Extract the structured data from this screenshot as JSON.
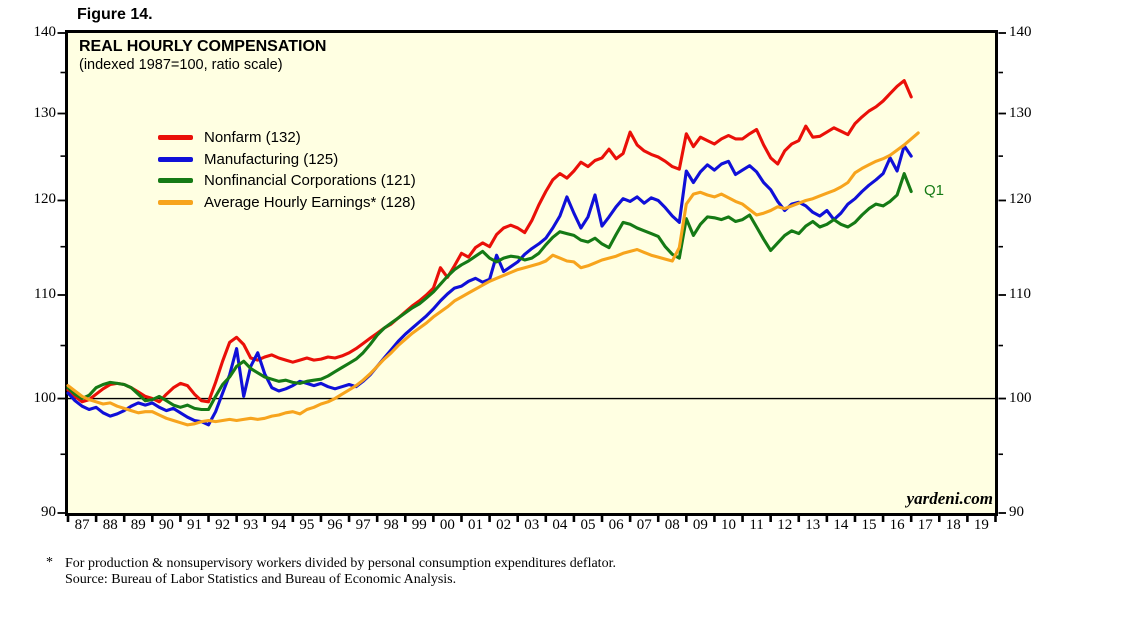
{
  "figure_label": "Figure 14.",
  "chart_data": {
    "type": "line",
    "title": "REAL HOURLY COMPENSATION",
    "subtitle": "(indexed 1987=100, ratio scale)",
    "legend_position": "upper-left",
    "grid": false,
    "y_axis": {
      "min": 90,
      "max": 140,
      "scale": "ratio-log",
      "sides": "both",
      "major_ticks": [
        140,
        130,
        120,
        110,
        100,
        90
      ],
      "minor_ticks": [
        135,
        125,
        115,
        105,
        95
      ],
      "baseline": 100
    },
    "x_axis": {
      "start_year": 1987,
      "end_year": 2020,
      "labels": [
        "87",
        "88",
        "89",
        "90",
        "91",
        "92",
        "93",
        "94",
        "95",
        "96",
        "97",
        "98",
        "99",
        "00",
        "01",
        "02",
        "03",
        "04",
        "05",
        "06",
        "07",
        "08",
        "09",
        "10",
        "11",
        "12",
        "13",
        "14",
        "15",
        "16",
        "17",
        "18",
        "19"
      ]
    },
    "series": [
      {
        "key": "nonfarm",
        "name": "Nonfarm",
        "legend_label": "Nonfarm (132)",
        "latest_value": 132,
        "color": "#EA1008",
        "start": 1987,
        "step_years": 0.25,
        "values": [
          100.8,
          100.2,
          99.7,
          99.9,
          100.4,
          100.9,
          101.3,
          101.4,
          101.3,
          101.0,
          100.6,
          100.2,
          100.0,
          99.7,
          100.4,
          101.0,
          101.4,
          101.2,
          100.4,
          99.8,
          99.7,
          101.5,
          103.5,
          105.3,
          105.8,
          105.1,
          103.8,
          103.6,
          103.9,
          104.1,
          103.8,
          103.6,
          103.4,
          103.6,
          103.8,
          103.6,
          103.7,
          103.9,
          103.8,
          104.0,
          104.3,
          104.7,
          105.2,
          105.7,
          106.2,
          106.7,
          107.1,
          107.7,
          108.3,
          108.9,
          109.4,
          110.0,
          110.7,
          112.8,
          111.8,
          113.0,
          114.3,
          113.9,
          114.9,
          115.4,
          115.0,
          116.3,
          117.0,
          117.3,
          117.0,
          116.5,
          117.8,
          119.5,
          121.0,
          122.3,
          123.0,
          122.5,
          123.3,
          124.3,
          123.8,
          124.5,
          124.8,
          125.8,
          124.7,
          125.3,
          127.8,
          126.3,
          125.6,
          125.2,
          124.9,
          124.4,
          123.8,
          123.5,
          127.6,
          126.1,
          127.2,
          126.8,
          126.4,
          127.0,
          127.4,
          127.0,
          127.0,
          127.6,
          128.1,
          126.3,
          124.8,
          124.1,
          125.6,
          126.4,
          126.8,
          128.5,
          127.2,
          127.3,
          127.8,
          128.3,
          127.9,
          127.5,
          128.8,
          129.6,
          130.3,
          130.8,
          131.5,
          132.4,
          133.3,
          134.0,
          132.0
        ]
      },
      {
        "key": "manufacturing",
        "name": "Manufacturing",
        "legend_label": "Manufacturing (125)",
        "latest_value": 125,
        "color": "#1010D8",
        "start": 1987,
        "step_years": 0.25,
        "values": [
          100.5,
          99.8,
          99.3,
          99.0,
          99.2,
          98.7,
          98.4,
          98.6,
          98.9,
          99.3,
          99.6,
          99.4,
          99.6,
          99.2,
          98.9,
          99.1,
          98.7,
          98.3,
          98.0,
          97.9,
          97.6,
          98.8,
          100.5,
          102.2,
          104.7,
          100.2,
          103.0,
          104.3,
          102.3,
          101.0,
          100.7,
          100.9,
          101.2,
          101.6,
          101.4,
          101.2,
          101.4,
          101.1,
          100.9,
          101.1,
          101.3,
          101.1,
          101.6,
          102.2,
          103.0,
          103.8,
          104.6,
          105.4,
          106.1,
          106.7,
          107.3,
          107.9,
          108.6,
          109.4,
          110.1,
          110.7,
          110.9,
          111.4,
          111.7,
          111.3,
          111.6,
          114.1,
          112.4,
          112.9,
          113.4,
          114.2,
          114.8,
          115.3,
          115.9,
          117.0,
          118.3,
          120.4,
          118.6,
          117.0,
          118.2,
          120.6,
          117.2,
          118.2,
          119.3,
          120.2,
          119.9,
          120.4,
          119.7,
          120.3,
          120.0,
          119.2,
          118.3,
          117.6,
          123.3,
          122.0,
          123.2,
          124.0,
          123.4,
          124.1,
          124.4,
          122.9,
          123.4,
          123.9,
          123.2,
          122.0,
          121.2,
          119.9,
          118.9,
          119.6,
          119.8,
          119.4,
          118.7,
          118.3,
          118.9,
          117.9,
          118.6,
          119.6,
          120.2,
          121.0,
          121.7,
          122.3,
          123.0,
          124.8,
          123.3,
          126.2,
          125.0
        ]
      },
      {
        "key": "nonfinancial_corporations",
        "name": "Nonfinancial Corporations",
        "legend_label": "Nonfinancial Corporations (121)",
        "latest_value": 121,
        "color": "#157A15",
        "start": 1987,
        "step_years": 0.25,
        "values": [
          101.0,
          100.4,
          100.0,
          100.3,
          101.0,
          101.3,
          101.5,
          101.4,
          101.3,
          101.0,
          100.4,
          99.8,
          99.9,
          100.2,
          99.8,
          99.4,
          99.2,
          99.4,
          99.1,
          99.0,
          99.0,
          100.2,
          101.3,
          102.0,
          103.0,
          103.5,
          102.8,
          102.4,
          102.0,
          101.8,
          101.6,
          101.7,
          101.5,
          101.4,
          101.6,
          101.7,
          101.8,
          102.1,
          102.5,
          102.9,
          103.3,
          103.7,
          104.3,
          105.1,
          106.0,
          106.7,
          107.2,
          107.7,
          108.2,
          108.7,
          109.1,
          109.7,
          110.3,
          111.1,
          111.9,
          112.6,
          113.1,
          113.5,
          114.0,
          114.5,
          113.8,
          113.4,
          113.8,
          114.0,
          113.9,
          113.6,
          113.8,
          114.3,
          115.2,
          116.0,
          116.6,
          116.4,
          116.2,
          115.7,
          115.5,
          115.9,
          115.3,
          114.9,
          116.3,
          117.6,
          117.4,
          117.0,
          116.7,
          116.4,
          116.1,
          115.0,
          114.2,
          113.8,
          118.0,
          116.2,
          117.4,
          118.2,
          118.1,
          117.9,
          118.2,
          117.7,
          117.9,
          118.4,
          117.1,
          115.8,
          114.6,
          115.4,
          116.2,
          116.7,
          116.4,
          117.2,
          117.7,
          117.1,
          117.4,
          117.9,
          117.4,
          117.1,
          117.6,
          118.4,
          119.1,
          119.6,
          119.4,
          119.9,
          120.6,
          123.0,
          121.0
        ]
      },
      {
        "key": "average_hourly_earnings",
        "name": "Average Hourly Earnings",
        "legend_label": "Average Hourly Earnings* (128)",
        "latest_value": 128,
        "color": "#F7A41D",
        "start": 1987,
        "step_years": 0.25,
        "values": [
          101.2,
          100.7,
          100.2,
          99.9,
          99.7,
          99.5,
          99.6,
          99.3,
          99.1,
          98.9,
          98.7,
          98.8,
          98.8,
          98.5,
          98.2,
          98.0,
          97.8,
          97.6,
          97.7,
          97.9,
          98.0,
          97.9,
          98.0,
          98.1,
          98.0,
          98.1,
          98.2,
          98.1,
          98.2,
          98.4,
          98.5,
          98.7,
          98.8,
          98.6,
          99.0,
          99.2,
          99.5,
          99.7,
          100.0,
          100.4,
          100.8,
          101.2,
          101.7,
          102.3,
          103.0,
          103.7,
          104.3,
          105.0,
          105.6,
          106.2,
          106.7,
          107.2,
          107.8,
          108.3,
          108.8,
          109.4,
          109.8,
          110.2,
          110.6,
          111.0,
          111.4,
          111.7,
          112.0,
          112.3,
          112.6,
          112.8,
          113.0,
          113.2,
          113.5,
          114.1,
          113.8,
          113.5,
          113.4,
          112.8,
          113.0,
          113.3,
          113.6,
          113.8,
          114.0,
          114.3,
          114.5,
          114.7,
          114.4,
          114.1,
          113.9,
          113.7,
          113.5,
          114.9,
          119.6,
          120.7,
          120.9,
          120.6,
          120.4,
          120.7,
          120.3,
          119.9,
          119.6,
          119.0,
          118.4,
          118.6,
          118.9,
          119.3,
          119.1,
          119.4,
          119.7,
          120.0,
          120.2,
          120.5,
          120.8,
          121.1,
          121.5,
          122.0,
          123.1,
          123.6,
          124.0,
          124.4,
          124.7,
          125.1,
          125.7,
          126.3,
          127.0,
          127.7
        ]
      }
    ],
    "annotations": {
      "q1_label": "Q1",
      "q1_color": "#157A15",
      "watermark": "yardeni.com"
    }
  },
  "footnote": {
    "star": "*",
    "line1": "For production & nonsupervisory workers divided by personal consumption expenditures deflator.",
    "line2": "Source: Bureau of Labor Statistics and Bureau of Economic Analysis."
  },
  "colors": {
    "plot_background": "#FFFFE2",
    "border": "#000000",
    "baseline": "#000000"
  }
}
